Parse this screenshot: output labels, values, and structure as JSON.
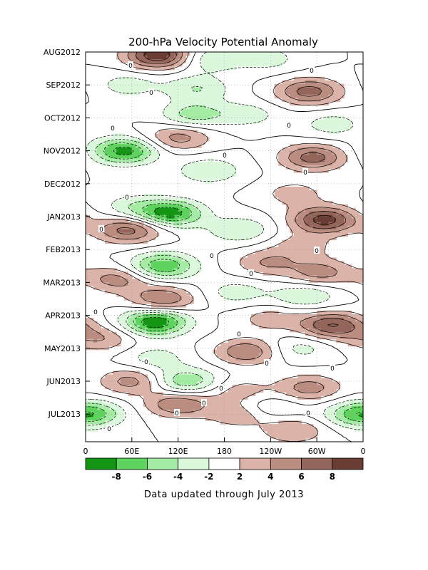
{
  "chart_data": {
    "type": "heatmap",
    "title": "200-hPa Velocity Potential Anomaly",
    "footnote": "Data updated through July 2013",
    "x_ticks": [
      "0",
      "60E",
      "120E",
      "180",
      "120W",
      "60W",
      "0"
    ],
    "y_ticks": [
      "AUG2012",
      "SEP2012",
      "OCT2012",
      "NOV2012",
      "DEC2012",
      "JAN2013",
      "FEB2013",
      "MAR2013",
      "APR2013",
      "MAY2013",
      "JUN2013",
      "JUL2013"
    ],
    "grid": true,
    "colorbar": {
      "labels": [
        "-8",
        "-6",
        "-4",
        "-2",
        "2",
        "4",
        "6",
        "8"
      ],
      "colors": [
        "#149514",
        "#5ed45e",
        "#a4eca4",
        "#dcf8dc",
        "#ffffff",
        "#dbb3a8",
        "#bb8c80",
        "#94665b",
        "#6a3d32"
      ]
    },
    "contour_zero_label": "0",
    "anomaly_centers": [
      {
        "lon": 95,
        "month": 0.1,
        "value": 10
      },
      {
        "lon": 160,
        "month": 0.2,
        "value": -4
      },
      {
        "lon": 235,
        "month": 0.2,
        "value": -3
      },
      {
        "lon": 55,
        "month": 1.0,
        "value": -3
      },
      {
        "lon": 145,
        "month": 1.1,
        "value": -4
      },
      {
        "lon": 290,
        "month": 1.2,
        "value": 7
      },
      {
        "lon": 140,
        "month": 1.9,
        "value": -5
      },
      {
        "lon": 210,
        "month": 1.9,
        "value": -3
      },
      {
        "lon": 320,
        "month": 2.2,
        "value": -3
      },
      {
        "lon": 50,
        "month": 3.0,
        "value": -9
      },
      {
        "lon": 120,
        "month": 2.6,
        "value": 5
      },
      {
        "lon": 160,
        "month": 3.6,
        "value": -4
      },
      {
        "lon": 295,
        "month": 3.2,
        "value": 7
      },
      {
        "lon": 270,
        "month": 4.3,
        "value": 3
      },
      {
        "lon": 60,
        "month": 4.7,
        "value": -3
      },
      {
        "lon": 110,
        "month": 4.9,
        "value": -9
      },
      {
        "lon": 200,
        "month": 5.4,
        "value": -4
      },
      {
        "lon": 310,
        "month": 5.1,
        "value": 9
      },
      {
        "lon": 55,
        "month": 5.4,
        "value": 7
      },
      {
        "lon": 280,
        "month": 5.9,
        "value": 3
      },
      {
        "lon": 100,
        "month": 6.5,
        "value": -8
      },
      {
        "lon": 235,
        "month": 6.4,
        "value": 4
      },
      {
        "lon": 40,
        "month": 6.9,
        "value": 5
      },
      {
        "lon": 305,
        "month": 6.7,
        "value": 5
      },
      {
        "lon": 100,
        "month": 7.5,
        "value": 6
      },
      {
        "lon": 195,
        "month": 7.3,
        "value": -3
      },
      {
        "lon": 285,
        "month": 7.4,
        "value": -4
      },
      {
        "lon": 90,
        "month": 8.2,
        "value": -10
      },
      {
        "lon": 320,
        "month": 8.3,
        "value": 8
      },
      {
        "lon": 240,
        "month": 8.1,
        "value": 3
      },
      {
        "lon": 20,
        "month": 8.7,
        "value": 4
      },
      {
        "lon": 210,
        "month": 9.1,
        "value": 6
      },
      {
        "lon": 275,
        "month": 9.0,
        "value": -3
      },
      {
        "lon": 90,
        "month": 9.3,
        "value": -3
      },
      {
        "lon": 130,
        "month": 10.0,
        "value": -6
      },
      {
        "lon": 60,
        "month": 10.0,
        "value": 5
      },
      {
        "lon": 290,
        "month": 10.2,
        "value": 5
      },
      {
        "lon": 200,
        "month": 10.3,
        "value": 3
      },
      {
        "lon": 235,
        "month": 10.8,
        "value": -3
      },
      {
        "lon": 8,
        "month": 11.0,
        "value": -6
      },
      {
        "lon": 120,
        "month": 10.7,
        "value": 6
      },
      {
        "lon": 200,
        "month": 11.0,
        "value": 4
      },
      {
        "lon": 345,
        "month": 11.0,
        "value": -3
      },
      {
        "lon": 270,
        "month": 11.5,
        "value": 4
      }
    ]
  }
}
